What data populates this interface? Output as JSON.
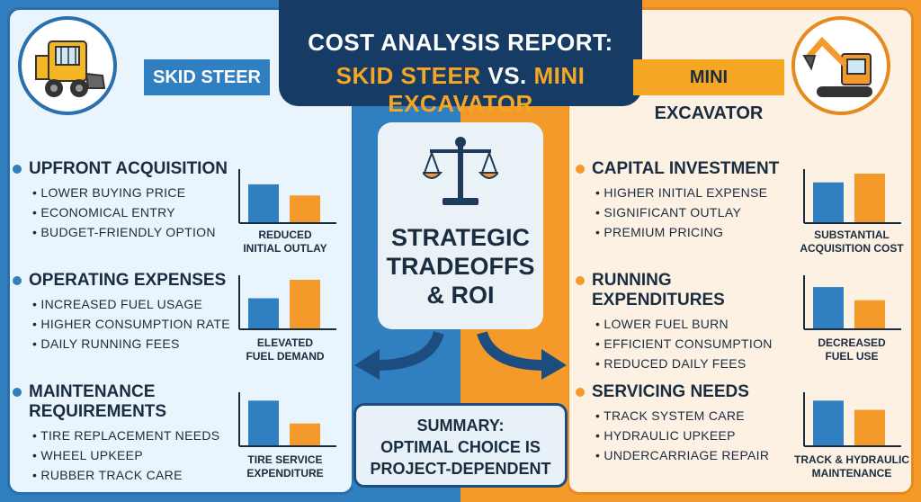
{
  "title": {
    "line1": "COST ANALYSIS REPORT:",
    "line2_a": "SKID STEER",
    "line2_vs": " VS. ",
    "line2_b": "MINI EXCAVATOR"
  },
  "left": {
    "ribbon": "SKID STEER",
    "sections": [
      {
        "title": "UPFRONT ACQUISITION",
        "bullets": [
          "LOWER BUYING PRICE",
          "ECONOMICAL ENTRY",
          "BUDGET-FRIENDLY OPTION"
        ],
        "caption": "REDUCED\nINITIAL OUTLAY"
      },
      {
        "title": "OPERATING EXPENSES",
        "bullets": [
          "INCREASED FUEL USAGE",
          "HIGHER CONSUMPTION RATE",
          "DAILY RUNNING FEES"
        ],
        "caption": "ELEVATED\nFUEL DEMAND"
      },
      {
        "title": "MAINTENANCE\nREQUIREMENTS",
        "bullets": [
          "TIRE REPLACEMENT NEEDS",
          "WHEEL UPKEEP",
          "RUBBER TRACK CARE"
        ],
        "caption": "TIRE SERVICE\nEXPENDITURE"
      }
    ]
  },
  "right": {
    "ribbon": "MINI EXCAVATOR",
    "sections": [
      {
        "title": "CAPITAL INVESTMENT",
        "bullets": [
          "HIGHER INITIAL EXPENSE",
          "SIGNIFICANT OUTLAY",
          "PREMIUM PRICING"
        ],
        "caption": "SUBSTANTIAL\nACQUISITION COST"
      },
      {
        "title": "RUNNING EXPENDITURES",
        "bullets": [
          "LOWER FUEL BURN",
          "EFFICIENT CONSUMPTION",
          "REDUCED DAILY FEES"
        ],
        "caption": "DECREASED\nFUEL USE"
      },
      {
        "title": "SERVICING NEEDS",
        "bullets": [
          "TRACK SYSTEM CARE",
          "HYDRAULIC UPKEEP",
          "UNDERCARRIAGE REPAIR"
        ],
        "caption": "TRACK & HYDRAULIC\nMAINTENANCE"
      }
    ]
  },
  "center": {
    "roi": "STRATEGIC\nTRADEOFFS\n& ROI",
    "summary": "SUMMARY:\nOPTIMAL CHOICE IS\nPROJECT-DEPENDENT"
  },
  "colors": {
    "blue": "#2f7fc1",
    "orange": "#f39a2a",
    "navy": "#163c66"
  },
  "icons": [
    "skid-steer-icon",
    "mini-excavator-icon",
    "balance-scale-icon",
    "curved-arrow-left-icon",
    "curved-arrow-right-icon"
  ],
  "chart_data": [
    {
      "type": "bar",
      "series": [
        {
          "values": [
            0.78,
            0.55
          ]
        }
      ]
    },
    {
      "type": "bar",
      "series": [
        {
          "values": [
            0.62,
            1.0
          ]
        }
      ]
    },
    {
      "type": "bar",
      "series": [
        {
          "values": [
            0.92,
            0.45
          ]
        }
      ]
    },
    {
      "type": "bar",
      "series": [
        {
          "values": [
            0.82,
            1.0
          ]
        }
      ]
    },
    {
      "type": "bar",
      "series": [
        {
          "values": [
            0.85,
            0.58
          ]
        }
      ]
    },
    {
      "type": "bar",
      "series": [
        {
          "values": [
            0.92,
            0.73
          ]
        }
      ]
    }
  ]
}
